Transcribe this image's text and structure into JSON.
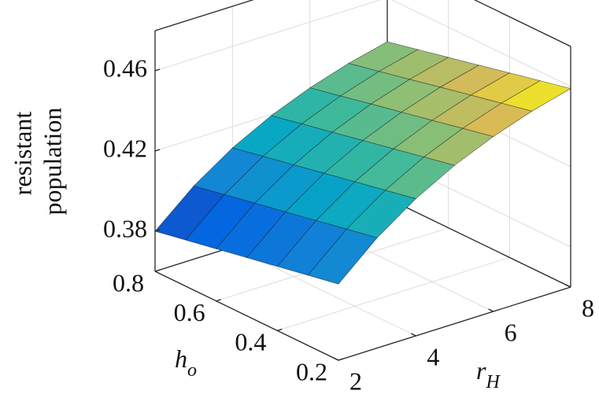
{
  "chart_data": {
    "type": "surface",
    "colormap": "parula",
    "grid": true,
    "zlabel": [
      "resistant",
      "population"
    ],
    "xlabel": [
      "r",
      "H"
    ],
    "ylabel": [
      "h",
      "o"
    ],
    "x": [
      2,
      3,
      4,
      5,
      6,
      7,
      8
    ],
    "y": [
      0.2,
      0.3,
      0.4,
      0.5,
      0.6,
      0.7,
      0.8
    ],
    "z": [
      [
        0.398,
        0.415,
        0.4284,
        0.4389,
        0.4472,
        0.4538,
        0.459
      ],
      [
        0.395,
        0.4119,
        0.4252,
        0.4357,
        0.4439,
        0.4504,
        0.4555
      ],
      [
        0.392,
        0.4088,
        0.4221,
        0.4324,
        0.4405,
        0.447,
        0.452
      ],
      [
        0.389,
        0.4057,
        0.4189,
        0.4292,
        0.4372,
        0.4436,
        0.4485
      ],
      [
        0.386,
        0.4027,
        0.4157,
        0.4259,
        0.4339,
        0.4401,
        0.445
      ],
      [
        0.383,
        0.3996,
        0.4126,
        0.4227,
        0.4305,
        0.4367,
        0.4415
      ],
      [
        0.38,
        0.3965,
        0.4094,
        0.4194,
        0.4272,
        0.4333,
        0.438
      ]
    ],
    "xlim": [
      2,
      8
    ],
    "xticks": [
      2,
      4,
      6,
      8
    ],
    "ylim": [
      0.2,
      0.8
    ],
    "yticks": [
      0.2,
      0.4,
      0.6,
      0.8
    ],
    "zlim": [
      0.36,
      0.48
    ],
    "zticks": [
      0.38,
      0.42,
      0.46
    ]
  }
}
